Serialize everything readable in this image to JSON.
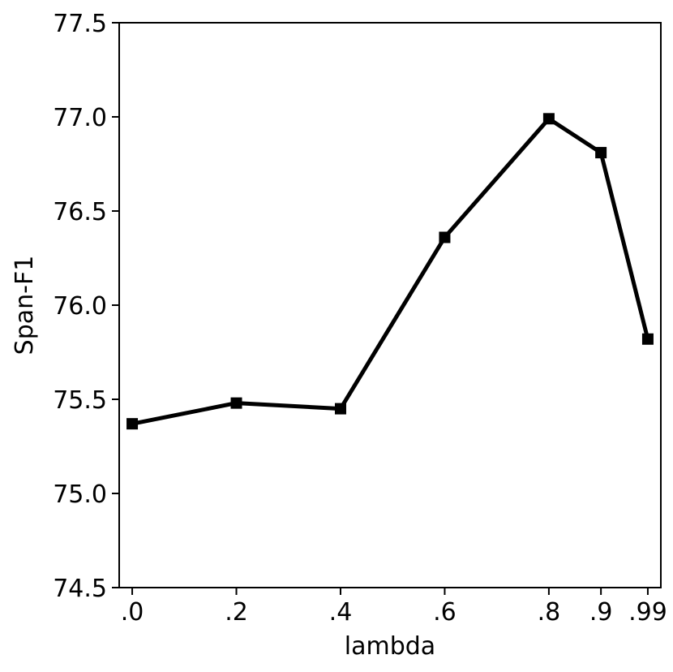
{
  "chart_data": {
    "type": "line",
    "title": "",
    "xlabel": "lambda",
    "ylabel": "Span-F1",
    "categories": [
      ".0",
      ".2",
      ".4",
      ".6",
      ".8",
      ".9",
      ".99"
    ],
    "x": [
      0,
      0.2,
      0.4,
      0.6,
      0.8,
      0.9,
      0.99
    ],
    "series": [
      {
        "values": [
          75.37,
          75.48,
          75.45,
          76.36,
          76.99,
          76.81,
          75.82
        ]
      }
    ],
    "ylim": [
      74.5,
      77.5
    ],
    "yticks": [
      "74.5",
      "75.0",
      "75.5",
      "76.0",
      "76.5",
      "77.0",
      "77.5"
    ],
    "grid": false,
    "marker": "square",
    "line_color": "#000000"
  }
}
